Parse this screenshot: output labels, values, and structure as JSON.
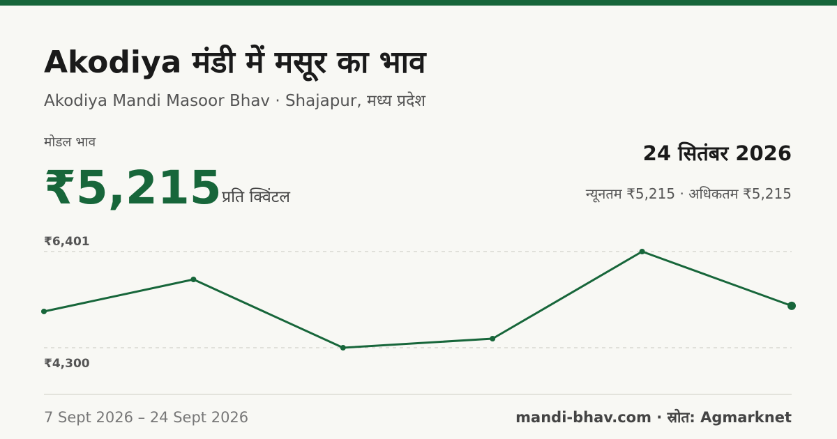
{
  "header": {
    "title": "Akodiya मंडी में मसूर का भाव",
    "subtitle": "Akodiya Mandi Masoor Bhav · Shajapur, मध्य प्रदेश"
  },
  "price": {
    "label": "मोडल भाव",
    "value": "₹5,215",
    "unit": "प्रति क्विंटल",
    "date": "24 सितंबर 2026",
    "range": "न्यूनतम ₹5,215 · अधिकतम ₹5,215"
  },
  "chart_data": {
    "type": "line",
    "categories": [
      null,
      null,
      null,
      null,
      null,
      null
    ],
    "values": [
      5092,
      5792,
      4300,
      4498,
      6401,
      5215
    ],
    "color": "#17663a",
    "ylim": [
      4300,
      6401
    ],
    "yticks": [
      {
        "value": 6401,
        "label": "₹6,401"
      },
      {
        "value": 4300,
        "label": "₹4,300"
      }
    ],
    "grid": true
  },
  "footer": {
    "period": "7 Sept 2026 – 24 Sept 2026",
    "source": "mandi-bhav.com · स्रोत: Agmarknet"
  }
}
